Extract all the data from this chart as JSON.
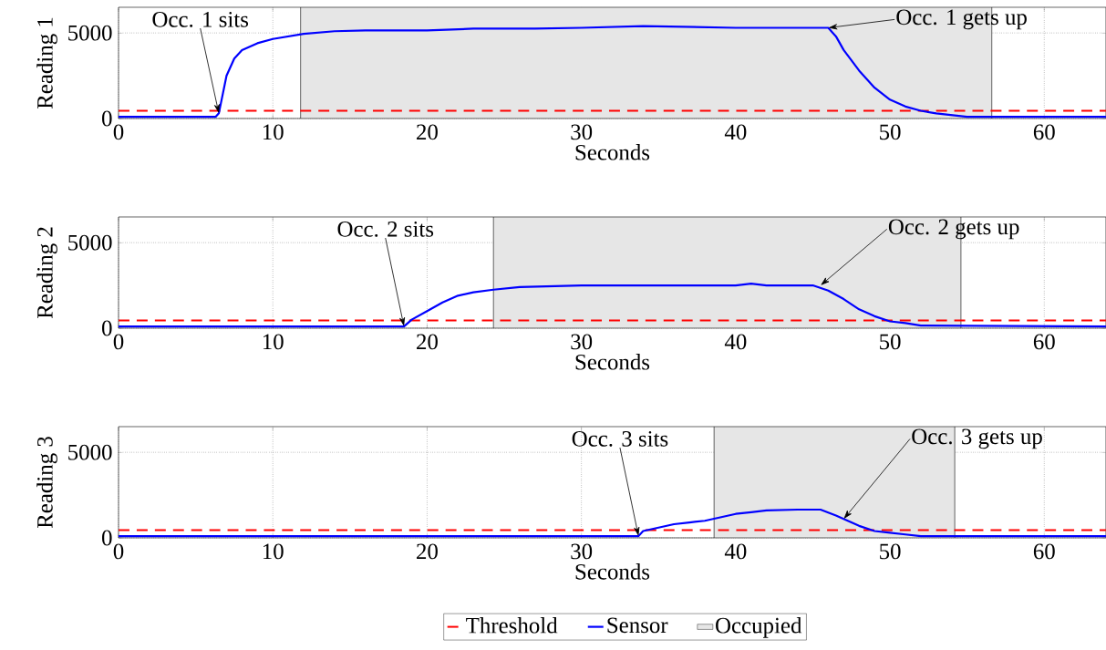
{
  "chart_data": [
    {
      "type": "line",
      "xlabel": "Seconds",
      "ylabel": "Reading 1",
      "xlim": [
        0,
        64
      ],
      "xticks": [
        0,
        10,
        20,
        30,
        40,
        50,
        60
      ],
      "ylim": [
        0,
        6500
      ],
      "yticks": [
        0,
        5000
      ],
      "grid": true,
      "series": [
        {
          "color": "#0000ff",
          "x": [
            0,
            6.3,
            6.5,
            7,
            7.5,
            8,
            9,
            10,
            11,
            12,
            14,
            16,
            20,
            23,
            27,
            30,
            34,
            40,
            46,
            46.5,
            47,
            48,
            49,
            50,
            51,
            52,
            53,
            55,
            64
          ],
          "values": [
            100,
            100,
            300,
            2500,
            3500,
            4000,
            4400,
            4650,
            4800,
            4950,
            5100,
            5150,
            5150,
            5250,
            5250,
            5300,
            5400,
            5300,
            5300,
            4800,
            4000,
            2800,
            1800,
            1100,
            700,
            450,
            300,
            100,
            100
          ]
        }
      ],
      "ref_lines": [
        {
          "axis": "y",
          "value": 450,
          "color": "#ff0000",
          "line_style": "dashed"
        }
      ],
      "bands": [
        {
          "axis": "x",
          "from": 11.8,
          "to": 56.6,
          "color": "#e6e6e6"
        }
      ],
      "annotations": [
        {
          "text": "Occ. 1 sits",
          "x": 6.5,
          "y": 300
        },
        {
          "text": "Occ. 1 gets up",
          "x": 46,
          "y": 5300
        }
      ]
    },
    {
      "type": "line",
      "xlabel": "Seconds",
      "ylabel": "Reading 2",
      "xlim": [
        0,
        64
      ],
      "xticks": [
        0,
        10,
        20,
        30,
        40,
        50,
        60
      ],
      "ylim": [
        0,
        6500
      ],
      "yticks": [
        0,
        5000
      ],
      "grid": true,
      "series": [
        {
          "color": "#0000ff",
          "x": [
            0,
            18.5,
            19,
            20,
            21,
            22,
            23,
            24.3,
            26,
            30,
            40,
            41,
            42,
            45,
            46,
            47,
            48,
            49,
            50,
            51,
            52,
            64
          ],
          "values": [
            100,
            100,
            500,
            1000,
            1500,
            1900,
            2100,
            2250,
            2400,
            2500,
            2500,
            2600,
            2500,
            2500,
            2200,
            1700,
            1100,
            700,
            400,
            300,
            150,
            100
          ]
        }
      ],
      "ref_lines": [
        {
          "axis": "y",
          "value": 450,
          "color": "#ff0000",
          "line_style": "dashed"
        }
      ],
      "bands": [
        {
          "axis": "x",
          "from": 24.3,
          "to": 54.6,
          "color": "#e6e6e6"
        }
      ],
      "annotations": [
        {
          "text": "Occ. 2 sits",
          "x": 18.5,
          "y": 100
        },
        {
          "text": "Occ. 2 gets up",
          "x": 45.5,
          "y": 2500
        }
      ]
    },
    {
      "type": "line",
      "xlabel": "Seconds",
      "ylabel": "Reading 3",
      "xlim": [
        0,
        64
      ],
      "xticks": [
        0,
        10,
        20,
        30,
        40,
        50,
        60
      ],
      "ylim": [
        0,
        6500
      ],
      "yticks": [
        0,
        5000
      ],
      "grid": true,
      "legend": "bottom",
      "series": [
        {
          "name": "Sensor",
          "color": "#0000ff",
          "x": [
            0,
            33.7,
            34,
            35,
            36,
            37,
            38,
            39,
            40,
            41,
            42,
            44,
            45.5,
            46.5,
            47,
            48,
            49,
            50,
            51,
            52,
            64
          ],
          "values": [
            100,
            100,
            400,
            600,
            800,
            900,
            1000,
            1200,
            1400,
            1500,
            1600,
            1650,
            1650,
            1300,
            1100,
            700,
            400,
            300,
            200,
            100,
            100
          ]
        }
      ],
      "ref_lines": [
        {
          "axis": "y",
          "value": 450,
          "label": "Threshold",
          "color": "#ff0000",
          "line_style": "dashed"
        }
      ],
      "bands": [
        {
          "axis": "x",
          "from": 38.6,
          "to": 54.2,
          "label": "Occupied",
          "color": "#e6e6e6"
        }
      ],
      "annotations": [
        {
          "text": "Occ. 3 sits",
          "x": 33.7,
          "y": 100
        },
        {
          "text": "Occ. 3 gets up",
          "x": 47,
          "y": 1100
        }
      ]
    }
  ]
}
